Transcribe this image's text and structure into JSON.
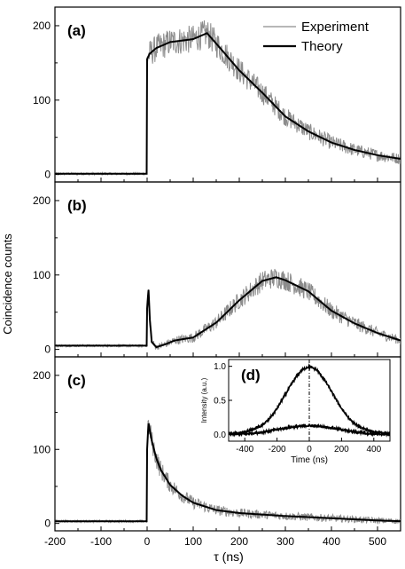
{
  "figure": {
    "shared_ylabel": "Coincidence counts",
    "shared_xlabel": "τ (ns)",
    "x_ticks": [
      "-200",
      "-100",
      "0",
      "100",
      "200",
      "300",
      "400",
      "500"
    ],
    "y_ticks": [
      "0",
      "100",
      "200"
    ],
    "legend": {
      "experiment": "Experiment",
      "theory": "Theory",
      "placement": "top-right of panel (a)"
    },
    "colors": {
      "experiment": "#8c8c8c",
      "theory": "#000000"
    }
  },
  "chart_data": [
    {
      "type": "line",
      "panel_label": "(a)",
      "xlim": [
        -200,
        550
      ],
      "ylim": [
        -10,
        225
      ],
      "series": [
        {
          "name": "Experiment",
          "noisy": true,
          "x": [
            -200,
            -1,
            0,
            5,
            20,
            50,
            100,
            130,
            150,
            200,
            250,
            300,
            350,
            400,
            450,
            500,
            550
          ],
          "y": [
            1,
            1,
            155,
            162,
            170,
            178,
            182,
            190,
            176,
            140,
            110,
            78,
            58,
            43,
            33,
            26,
            21
          ]
        },
        {
          "name": "Theory",
          "x": [
            -200,
            -1,
            0,
            5,
            20,
            50,
            100,
            130,
            150,
            200,
            250,
            300,
            350,
            400,
            450,
            500,
            550
          ],
          "y": [
            1,
            1,
            155,
            162,
            170,
            178,
            182,
            190,
            176,
            140,
            110,
            78,
            58,
            43,
            33,
            26,
            21
          ]
        }
      ]
    },
    {
      "type": "line",
      "panel_label": "(b)",
      "xlim": [
        -200,
        550
      ],
      "ylim": [
        -10,
        225
      ],
      "series": [
        {
          "name": "Experiment",
          "noisy": true,
          "x": [
            -200,
            -1,
            0,
            3,
            6,
            10,
            20,
            40,
            60,
            100,
            150,
            200,
            250,
            280,
            300,
            350,
            400,
            450,
            500,
            550
          ],
          "y": [
            5,
            5,
            55,
            80,
            40,
            10,
            3,
            7,
            12,
            16,
            36,
            66,
            92,
            97,
            93,
            78,
            52,
            35,
            22,
            12
          ]
        },
        {
          "name": "Theory",
          "x": [
            -200,
            -1,
            0,
            3,
            6,
            10,
            20,
            40,
            60,
            100,
            150,
            200,
            250,
            280,
            300,
            350,
            400,
            450,
            500,
            550
          ],
          "y": [
            5,
            5,
            55,
            80,
            40,
            10,
            3,
            7,
            12,
            16,
            36,
            66,
            92,
            97,
            93,
            78,
            52,
            35,
            22,
            12
          ]
        }
      ]
    },
    {
      "type": "line",
      "panel_label": "(c)",
      "xlim": [
        -200,
        550
      ],
      "ylim": [
        -10,
        225
      ],
      "series": [
        {
          "name": "Experiment",
          "noisy": true,
          "x": [
            -200,
            -1,
            0,
            3,
            10,
            20,
            30,
            50,
            75,
            100,
            150,
            200,
            300,
            400,
            500,
            550
          ],
          "y": [
            3,
            3,
            100,
            135,
            112,
            88,
            72,
            52,
            38,
            28,
            18,
            14,
            10,
            7,
            4,
            3
          ]
        },
        {
          "name": "Theory",
          "x": [
            -200,
            -1,
            0,
            3,
            10,
            20,
            30,
            50,
            75,
            100,
            150,
            200,
            300,
            400,
            500,
            550
          ],
          "y": [
            3,
            3,
            100,
            135,
            112,
            88,
            72,
            52,
            38,
            28,
            18,
            14,
            10,
            7,
            4,
            3
          ]
        }
      ]
    },
    {
      "type": "line",
      "panel_label": "(d)",
      "xlabel": "Time (ns)",
      "ylabel": "Intensity (a.u.)",
      "xlim": [
        -500,
        500
      ],
      "ylim": [
        -0.1,
        1.1
      ],
      "x_ticks": [
        "-400",
        "-200",
        "0",
        "200",
        "400"
      ],
      "y_ticks": [
        "0.0",
        "0.5",
        "1.0"
      ],
      "vline_x": 0,
      "series": [
        {
          "x": [
            -500,
            -400,
            -300,
            -250,
            -200,
            -150,
            -100,
            -50,
            0,
            50,
            100,
            150,
            200,
            250,
            300,
            400,
            500
          ],
          "y": [
            0.01,
            0.03,
            0.12,
            0.22,
            0.38,
            0.58,
            0.78,
            0.94,
            1.0,
            0.94,
            0.78,
            0.58,
            0.38,
            0.22,
            0.12,
            0.03,
            0.01
          ]
        },
        {
          "x": [
            -500,
            -400,
            -300,
            -200,
            -100,
            0,
            100,
            200,
            300,
            400,
            500
          ],
          "y": [
            0.0,
            0.005,
            0.03,
            0.07,
            0.11,
            0.13,
            0.11,
            0.07,
            0.03,
            0.005,
            0.0
          ]
        }
      ]
    }
  ]
}
